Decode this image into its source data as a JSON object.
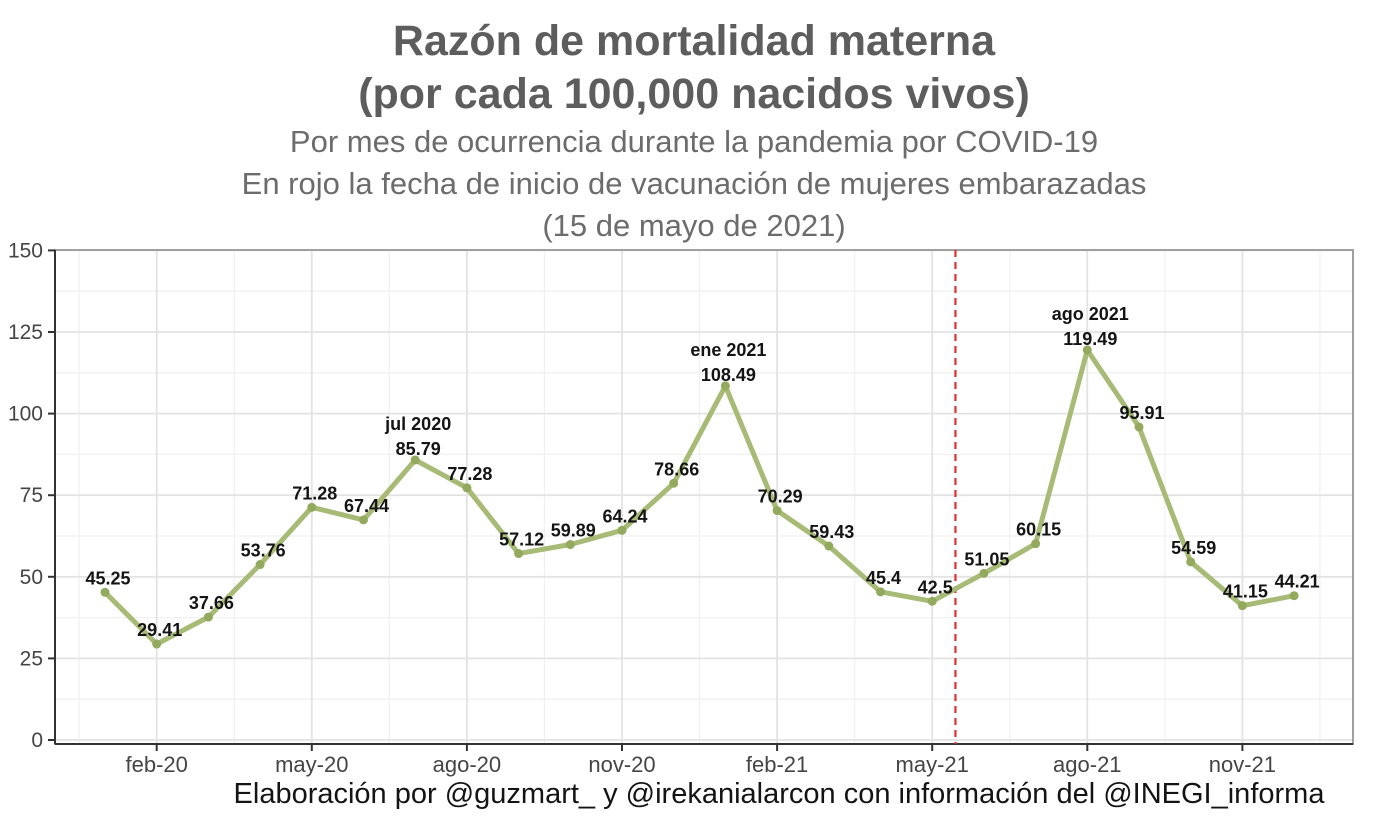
{
  "header": {
    "title_line1": "Razón de mortalidad materna",
    "title_line2": "(por cada 100,000 nacidos vivos)",
    "subtitle_line1": "Por mes de ocurrencia durante la pandemia por COVID-19",
    "subtitle_line2": "En rojo la fecha de inicio de vacunación de mujeres embarazadas",
    "subtitle_line3": "(15 de mayo de 2021)"
  },
  "footer": {
    "caption": "Elaboración por @guzmart_ y @irekanialarcon con información del @INEGI_informa"
  },
  "chart_data": {
    "type": "line",
    "title": "Razón de mortalidad materna (por cada 100,000 nacidos vivos)",
    "subtitle": "Por mes de ocurrencia durante la pandemia por COVID-19. En rojo la fecha de inicio de vacunación de mujeres embarazadas (15 de mayo de 2021)",
    "xlabel": "",
    "ylabel": "",
    "x": [
      "ene-20",
      "feb-20",
      "mar-20",
      "abr-20",
      "may-20",
      "jun-20",
      "jul-20",
      "ago-20",
      "sep-20",
      "oct-20",
      "nov-20",
      "dic-20",
      "ene-21",
      "feb-21",
      "mar-21",
      "abr-21",
      "may-21",
      "jun-21",
      "jul-21",
      "ago-21",
      "sep-21",
      "oct-21",
      "nov-21",
      "dic-21"
    ],
    "values": [
      45.25,
      29.41,
      37.66,
      53.76,
      71.28,
      67.44,
      85.79,
      77.28,
      57.12,
      59.89,
      64.24,
      78.66,
      108.49,
      70.29,
      59.43,
      45.4,
      42.5,
      51.05,
      60.15,
      119.49,
      95.91,
      54.59,
      41.15,
      44.21
    ],
    "point_labels": [
      "45.25",
      "29.41",
      "37.66",
      "53.76",
      "71.28",
      "67.44",
      "85.79",
      "77.28",
      "57.12",
      "59.89",
      "64.24",
      "78.66",
      "108.49",
      "70.29",
      "59.43",
      "45.4",
      "42.5",
      "51.05",
      "60.15",
      "119.49",
      "95.91",
      "54.59",
      "41.15",
      "44.21"
    ],
    "annotations": [
      {
        "point_index": 6,
        "text": "jul 2020"
      },
      {
        "point_index": 12,
        "text": "ene 2021"
      },
      {
        "point_index": 19,
        "text": "ago 2021"
      }
    ],
    "x_tick_labels": [
      "feb-20",
      "may-20",
      "ago-20",
      "nov-20",
      "feb-21",
      "may-21",
      "ago-21",
      "nov-21"
    ],
    "x_tick_indices": [
      1,
      4,
      7,
      10,
      13,
      16,
      19,
      22
    ],
    "y_ticks": [
      0,
      25,
      50,
      75,
      100,
      125,
      150
    ],
    "ylim": [
      0,
      150
    ],
    "grid": "major and minor gridlines on, legend off",
    "vline": {
      "x_index": 16.45,
      "date_label": "15 de mayo de 2021",
      "style": "dashed"
    },
    "colors": {
      "line": "#a7bb76",
      "marker": "#93aa5e",
      "vline": "#e03030",
      "point_label": "#141414",
      "tick_label": "#454545",
      "grid_major": "#e3e3e3",
      "grid_minor": "#f1f1f1",
      "axis": "#333333",
      "panel_border": "#a0a0a0",
      "title": "#5d5d5d",
      "subtitle": "#6c6c6c"
    }
  }
}
